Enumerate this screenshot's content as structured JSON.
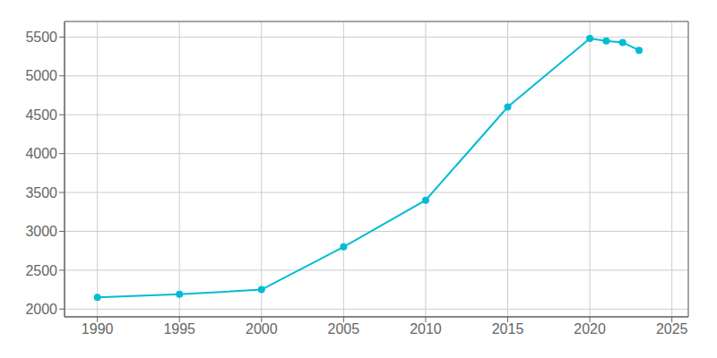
{
  "chart_data": {
    "type": "line",
    "x": [
      1990,
      1995,
      2000,
      2005,
      2010,
      2015,
      2020,
      2021,
      2022,
      2023
    ],
    "values": [
      2150,
      2190,
      2250,
      2800,
      3400,
      4600,
      5480,
      5450,
      5430,
      5330
    ],
    "color": "#00BCD4",
    "marker": "circle",
    "xlim": [
      1988,
      2026
    ],
    "ylim": [
      1900,
      5700
    ],
    "xticks": [
      1990,
      1995,
      2000,
      2005,
      2010,
      2015,
      2020,
      2025
    ],
    "yticks": [
      2000,
      2500,
      3000,
      3500,
      4000,
      4500,
      5000,
      5500
    ],
    "grid": true
  }
}
